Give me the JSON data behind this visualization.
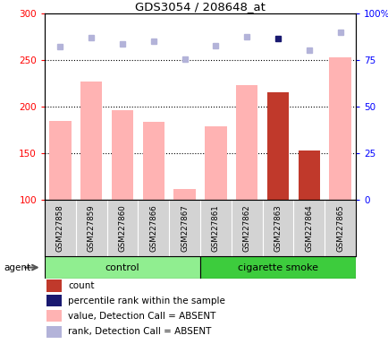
{
  "title": "GDS3054 / 208648_at",
  "samples": [
    "GSM227858",
    "GSM227859",
    "GSM227860",
    "GSM227866",
    "GSM227867",
    "GSM227861",
    "GSM227862",
    "GSM227863",
    "GSM227864",
    "GSM227865"
  ],
  "bar_values": [
    185,
    227,
    196,
    184,
    111,
    179,
    223,
    215,
    153,
    253
  ],
  "bar_colors": [
    "#ffb3b3",
    "#ffb3b3",
    "#ffb3b3",
    "#ffb3b3",
    "#ffb3b3",
    "#ffb3b3",
    "#ffb3b3",
    "#c0392b",
    "#c0392b",
    "#ffb3b3"
  ],
  "rank_values": [
    265,
    274,
    268,
    270,
    251,
    266,
    275,
    273,
    261,
    280
  ],
  "rank_colors": [
    "#b3b3d9",
    "#b3b3d9",
    "#b3b3d9",
    "#b3b3d9",
    "#b3b3d9",
    "#b3b3d9",
    "#b3b3d9",
    "#191970",
    "#b3b3d9",
    "#b3b3d9"
  ],
  "ylim_left": [
    100,
    300
  ],
  "ylim_right": [
    0,
    100
  ],
  "yticks_left": [
    100,
    150,
    200,
    250,
    300
  ],
  "yticks_right": [
    0,
    25,
    50,
    75,
    100
  ],
  "ytick_labels_left": [
    "100",
    "150",
    "200",
    "250",
    "300"
  ],
  "ytick_labels_right": [
    "0",
    "25",
    "50",
    "75",
    "100%"
  ],
  "hlines": [
    150,
    200,
    250
  ],
  "bar_bottom": 100,
  "group_labels": [
    "control",
    "cigarette smoke"
  ],
  "group_colors": [
    "#90EE90",
    "#3dcc3d"
  ],
  "legend_items": [
    {
      "color": "#c0392b",
      "label": "count"
    },
    {
      "color": "#191970",
      "label": "percentile rank within the sample"
    },
    {
      "color": "#ffb3b3",
      "label": "value, Detection Call = ABSENT"
    },
    {
      "color": "#b3b3d9",
      "label": "rank, Detection Call = ABSENT"
    }
  ]
}
